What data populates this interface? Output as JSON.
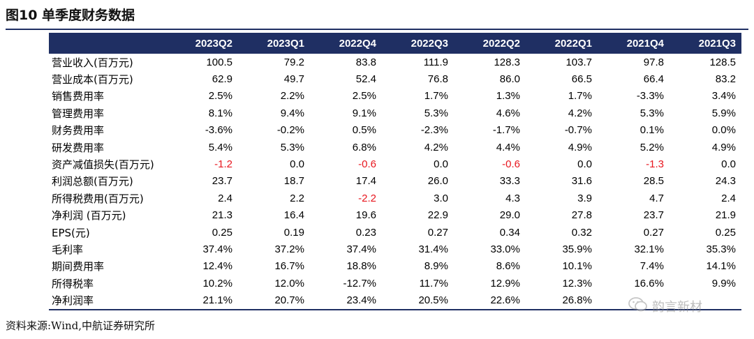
{
  "title": "图10  单季度财务数据",
  "columns": [
    "",
    "2023Q2",
    "2023Q1",
    "2022Q4",
    "2022Q3",
    "2022Q2",
    "2022Q1",
    "2021Q4",
    "2021Q3"
  ],
  "rows": [
    {
      "label": "营业收入(百万元)",
      "values": [
        "100.5",
        "79.2",
        "83.8",
        "111.9",
        "128.3",
        "103.7",
        "97.8",
        "128.5"
      ]
    },
    {
      "label": "营业成本(百万元)",
      "values": [
        "62.9",
        "49.7",
        "52.4",
        "76.8",
        "86.0",
        "66.5",
        "66.4",
        "83.2"
      ]
    },
    {
      "label": "销售费用率",
      "values": [
        "2.5%",
        "2.2%",
        "2.5%",
        "1.7%",
        "1.3%",
        "1.7%",
        "-3.3%",
        "3.4%"
      ]
    },
    {
      "label": "管理费用率",
      "values": [
        "8.1%",
        "9.4%",
        "9.1%",
        "5.3%",
        "4.6%",
        "4.2%",
        "5.3%",
        "5.9%"
      ]
    },
    {
      "label": "财务费用率",
      "values": [
        "-3.6%",
        "-0.2%",
        "0.5%",
        "-2.3%",
        "-1.7%",
        "-0.7%",
        "0.1%",
        "0.0%"
      ]
    },
    {
      "label": "研发费用率",
      "values": [
        "5.4%",
        "5.3%",
        "6.8%",
        "4.2%",
        "4.4%",
        "4.9%",
        "5.2%",
        "4.9%"
      ]
    },
    {
      "label": "资产减值损失(百万元)",
      "values": [
        "-1.2",
        "0.0",
        "-0.6",
        "0.0",
        "-0.6",
        "0.0",
        "-1.3",
        "0.0"
      ],
      "red_indices": [
        0,
        2,
        4,
        6
      ]
    },
    {
      "label": "利润总额(百万元)",
      "values": [
        "23.7",
        "18.7",
        "17.4",
        "26.0",
        "33.3",
        "31.6",
        "28.5",
        "24.3"
      ]
    },
    {
      "label": "所得税费用(百万元)",
      "values": [
        "2.4",
        "2.2",
        "-2.2",
        "3.0",
        "4.3",
        "3.9",
        "4.7",
        "2.4"
      ],
      "red_indices": [
        2
      ]
    },
    {
      "label": "净利润  (百万元)",
      "values": [
        "21.3",
        "16.4",
        "19.6",
        "22.9",
        "29.0",
        "27.8",
        "23.7",
        "21.9"
      ]
    },
    {
      "label": "EPS(元)",
      "values": [
        "0.25",
        "0.19",
        "0.23",
        "0.27",
        "0.34",
        "0.32",
        "0.27",
        "0.25"
      ]
    },
    {
      "label": "毛利率",
      "values": [
        "37.4%",
        "37.2%",
        "37.4%",
        "31.4%",
        "33.0%",
        "35.9%",
        "32.1%",
        "35.3%"
      ]
    },
    {
      "label": "期间费用率",
      "values": [
        "12.4%",
        "16.7%",
        "18.8%",
        "8.9%",
        "8.6%",
        "10.1%",
        "7.4%",
        "14.1%"
      ]
    },
    {
      "label": "所得税率",
      "values": [
        "10.2%",
        "12.0%",
        "-12.7%",
        "11.7%",
        "12.9%",
        "12.3%",
        "16.6%",
        "9.9%"
      ]
    },
    {
      "label": "净利润率",
      "values": [
        "21.1%",
        "20.7%",
        "23.4%",
        "20.5%",
        "22.6%",
        "26.8%",
        "",
        ""
      ]
    }
  ],
  "source": "资料来源:Wind,中航证券研究所",
  "watermark": {
    "icon": "wechat-icon",
    "text": "韵言新材"
  },
  "colors": {
    "header_bg": "#1f2f63",
    "header_text": "#ffffff",
    "negative_red": "#e8161e"
  }
}
